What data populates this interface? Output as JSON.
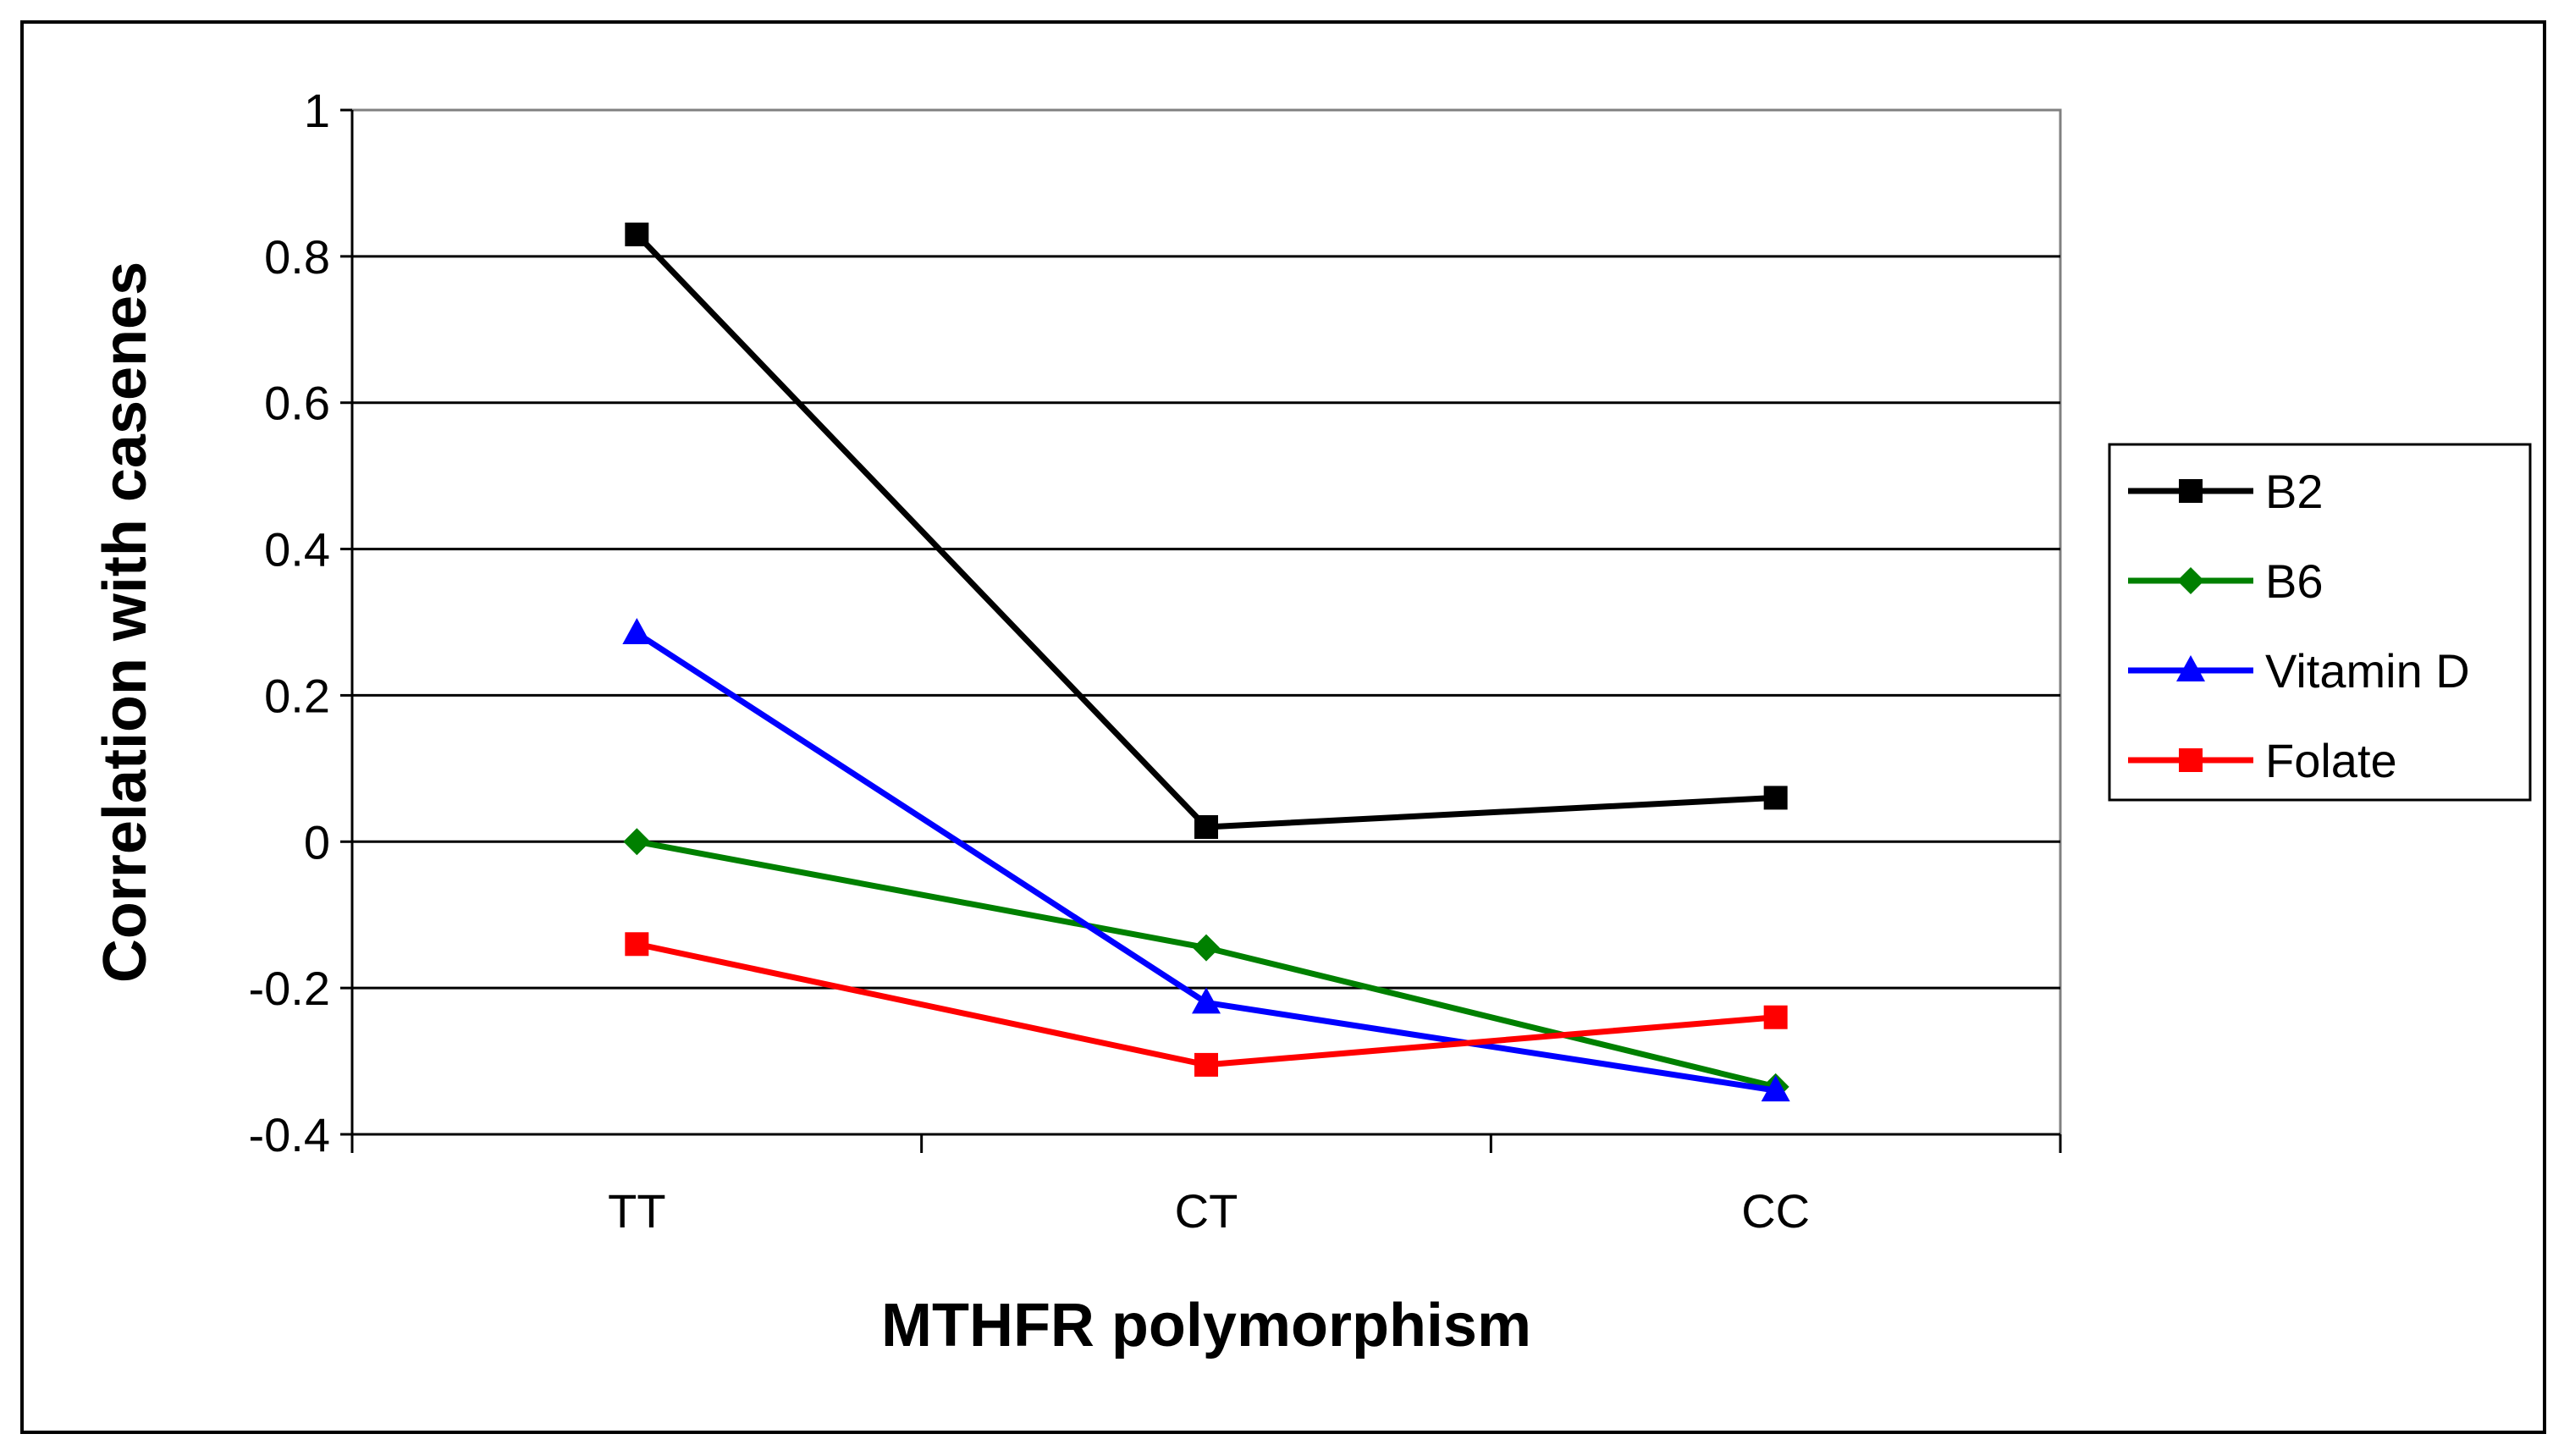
{
  "chart_data": {
    "type": "line",
    "title": "",
    "xlabel": "MTHFR polymorphism",
    "ylabel": "Correlation with casenes",
    "categories": [
      "TT",
      "CT",
      "CC"
    ],
    "ylim": [
      -0.4,
      1
    ],
    "yticks": [
      -0.4,
      -0.2,
      0,
      0.2,
      0.4,
      0.6,
      0.8,
      1
    ],
    "ytick_labels": [
      "-0.4",
      "-0.2",
      "0",
      "0.2",
      "0.4",
      "0.6",
      "0.8",
      "1"
    ],
    "grid": true,
    "legend_position": "right",
    "series": [
      {
        "name": "B2",
        "values": [
          0.83,
          0.02,
          0.06
        ],
        "color": "#000000",
        "marker": "square"
      },
      {
        "name": "B6",
        "values": [
          0.0,
          -0.145,
          -0.335
        ],
        "color": "#008000",
        "marker": "diamond"
      },
      {
        "name": "Vitamin D",
        "values": [
          0.285,
          -0.22,
          -0.34
        ],
        "color": "#0000FF",
        "marker": "triangle"
      },
      {
        "name": "Folate",
        "values": [
          -0.14,
          -0.305,
          -0.24
        ],
        "color": "#FF0000",
        "marker": "square"
      }
    ]
  }
}
